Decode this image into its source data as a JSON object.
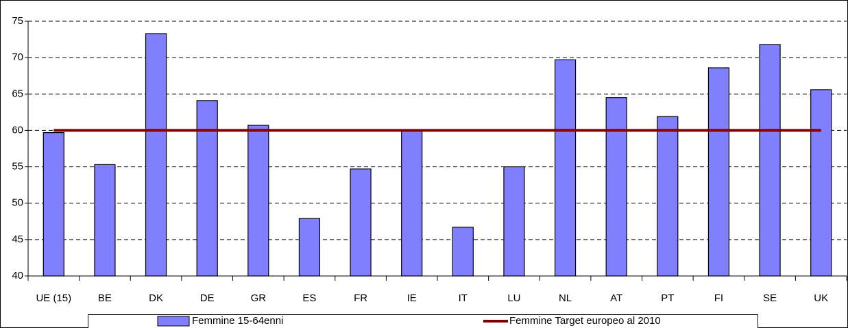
{
  "chart_data": {
    "type": "bar",
    "categories": [
      "UE (15)",
      "BE",
      "DK",
      "DE",
      "GR",
      "ES",
      "FR",
      "IE",
      "IT",
      "LU",
      "NL",
      "AT",
      "PT",
      "FI",
      "SE",
      "UK"
    ],
    "series": [
      {
        "name": "Femmine 15-64enni",
        "type": "bar",
        "color": "#8080ff",
        "values": [
          59.7,
          55.3,
          73.3,
          64.1,
          60.7,
          47.9,
          54.7,
          60.1,
          46.7,
          55.0,
          69.7,
          64.5,
          61.9,
          68.6,
          71.8,
          65.6
        ]
      },
      {
        "name": "Femmine Target europeo al 2010",
        "type": "line",
        "color": "#800000",
        "values": [
          60,
          60,
          60,
          60,
          60,
          60,
          60,
          60,
          60,
          60,
          60,
          60,
          60,
          60,
          60,
          60
        ]
      }
    ],
    "ylim": [
      40,
      75
    ],
    "yticks": [
      40,
      45,
      50,
      55,
      60,
      65,
      70,
      75
    ],
    "grid": true,
    "legend": "bottom"
  }
}
